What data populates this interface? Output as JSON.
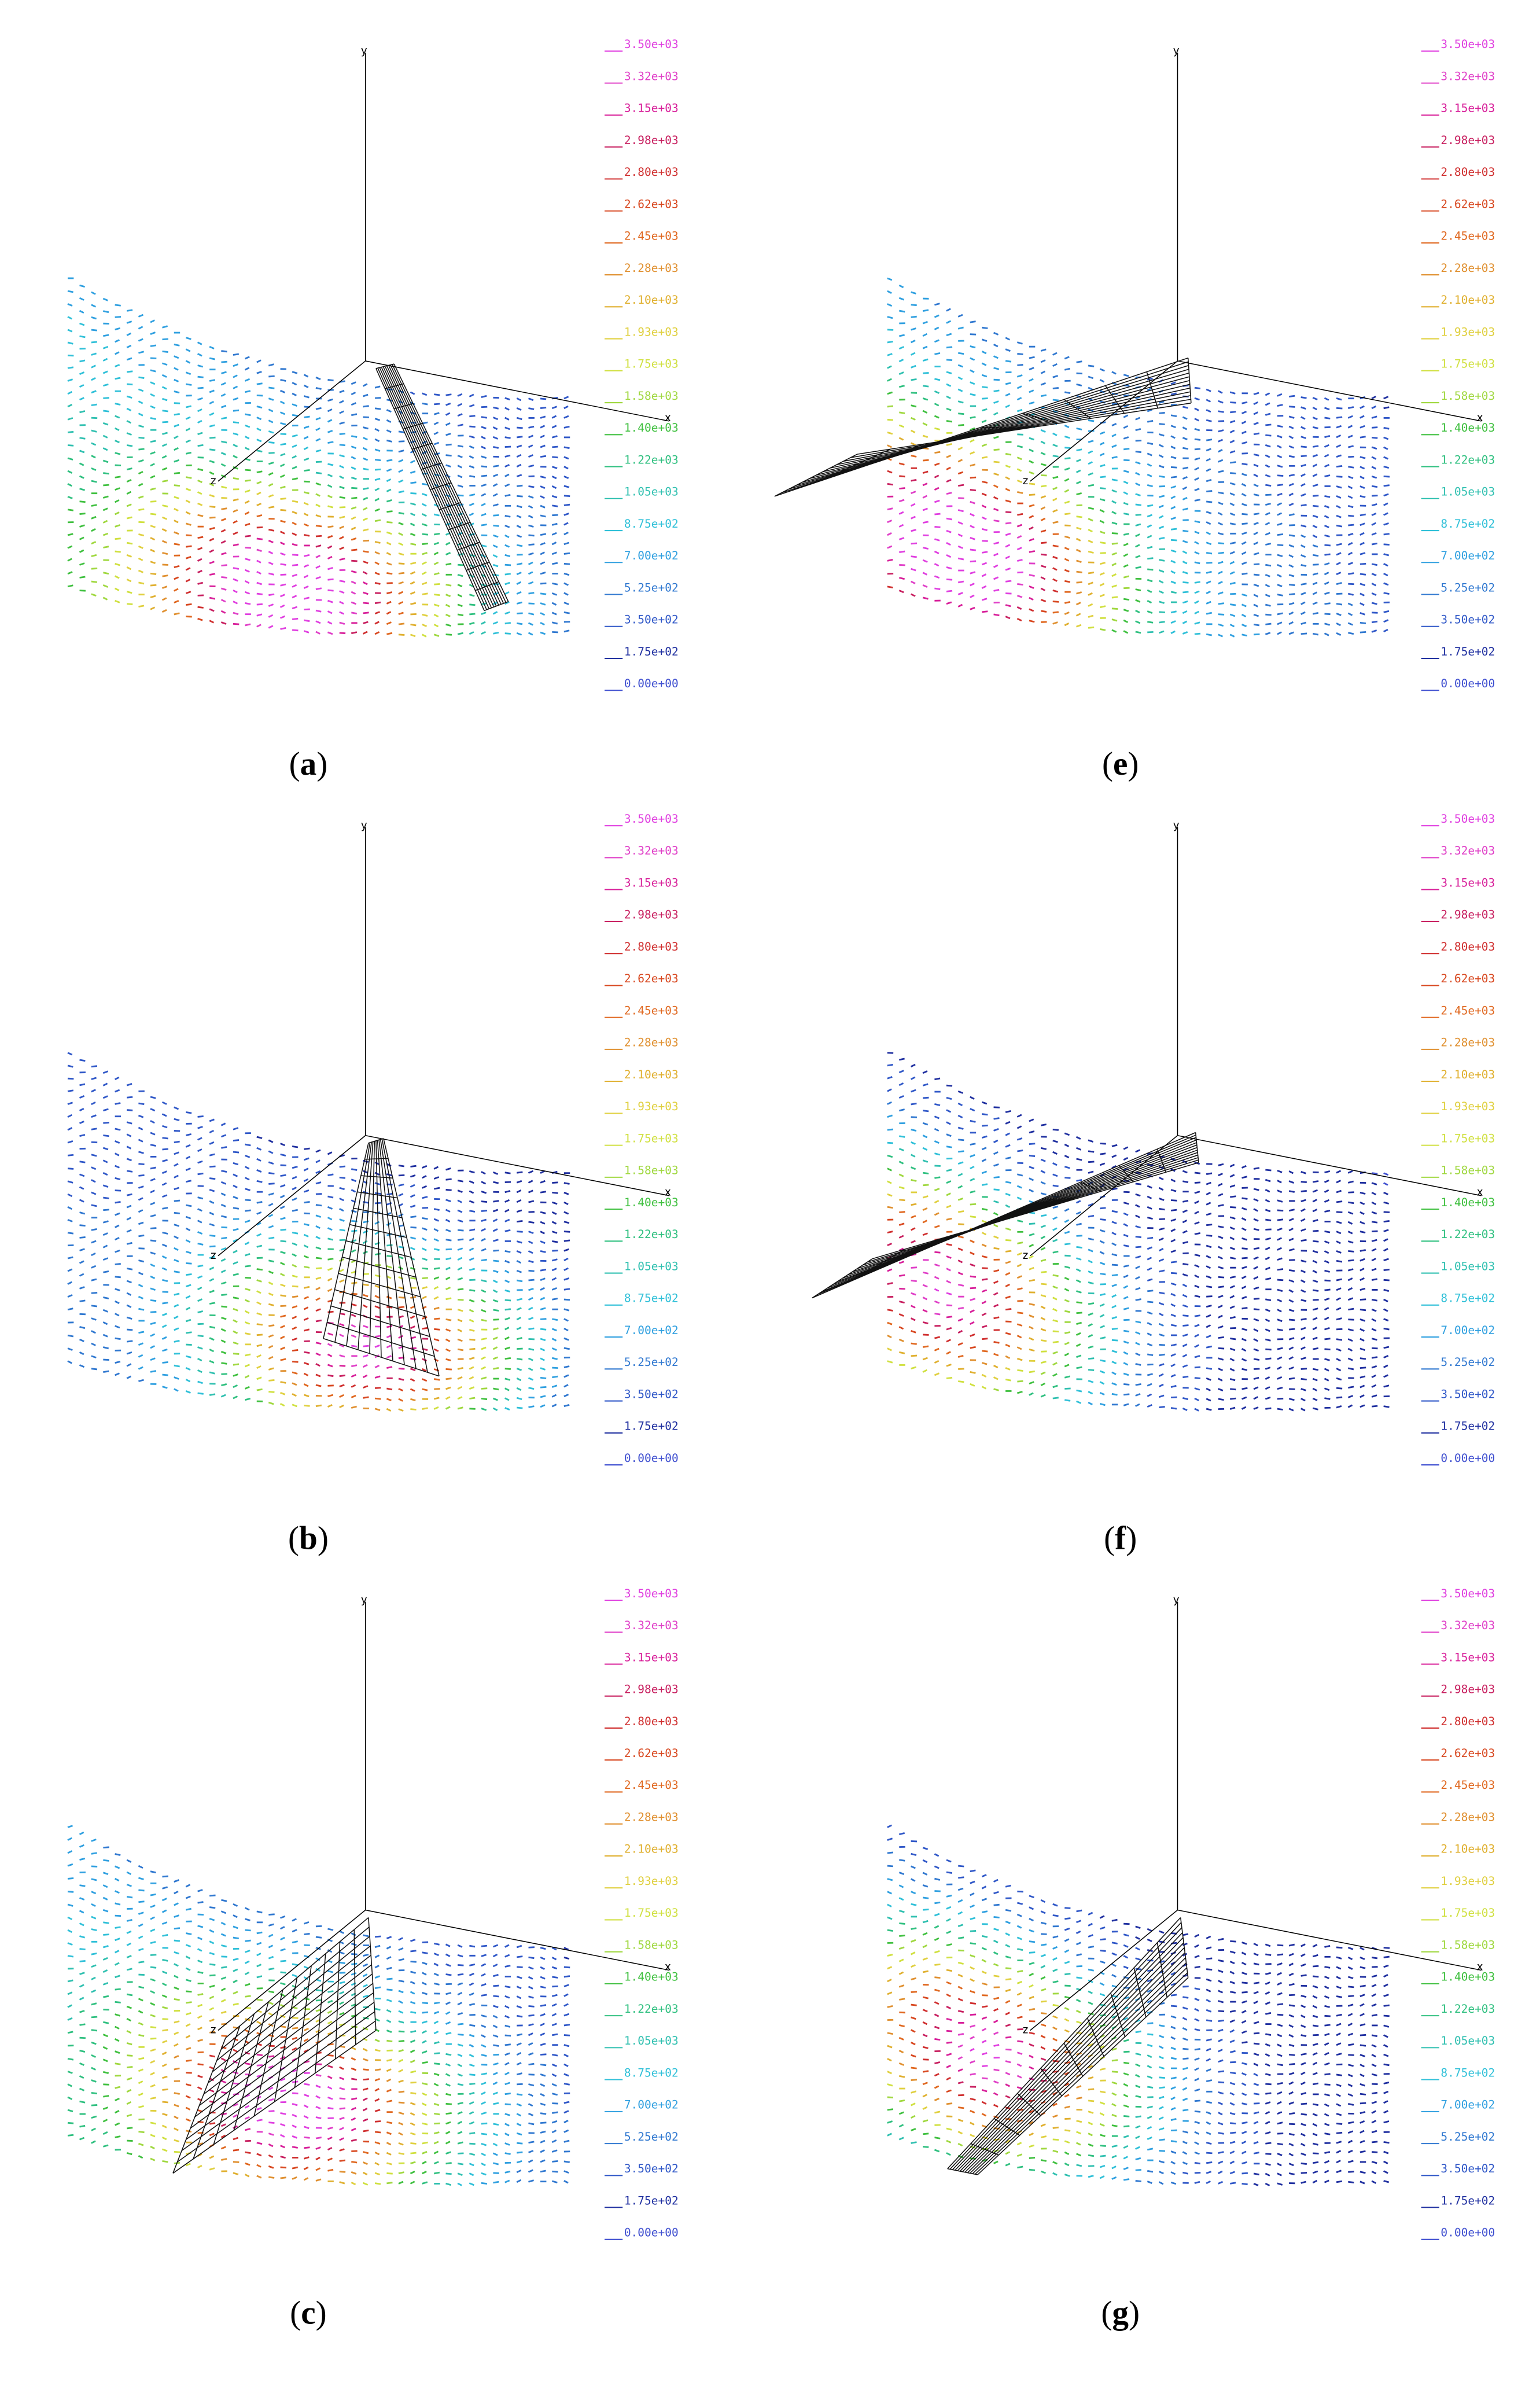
{
  "panels": [
    {
      "label": [
        "(",
        "a",
        ")"
      ]
    },
    {
      "label": [
        "(",
        "e",
        ")"
      ]
    },
    {
      "label": [
        "(",
        "b",
        ")"
      ]
    },
    {
      "label": [
        "(",
        "f",
        ")"
      ]
    },
    {
      "label": [
        "(",
        "c",
        ")"
      ]
    },
    {
      "label": [
        "(",
        "g",
        ")"
      ]
    }
  ],
  "legend": {
    "labels": [
      "3.50e+03",
      "3.32e+03",
      "3.15e+03",
      "2.98e+03",
      "2.80e+03",
      "2.62e+03",
      "2.45e+03",
      "2.28e+03",
      "2.10e+03",
      "1.93e+03",
      "1.75e+03",
      "1.58e+03",
      "1.40e+03",
      "1.22e+03",
      "1.05e+03",
      "8.75e+02",
      "7.00e+02",
      "5.25e+02",
      "3.50e+02",
      "1.75e+02",
      "0.00e+00"
    ],
    "colors": [
      "#e040e0",
      "#e040c8",
      "#d8209a",
      "#c82060",
      "#d03030",
      "#d84820",
      "#e06820",
      "#e09030",
      "#e0b030",
      "#e0d040",
      "#d0e040",
      "#a0d840",
      "#40c040",
      "#30c080",
      "#30c0b0",
      "#30c0d8",
      "#30a0e0",
      "#3078d0",
      "#3058c8",
      "#2030a0",
      "#4050d0"
    ]
  },
  "axes": {
    "x": "x",
    "y": "y",
    "z": "z"
  }
}
